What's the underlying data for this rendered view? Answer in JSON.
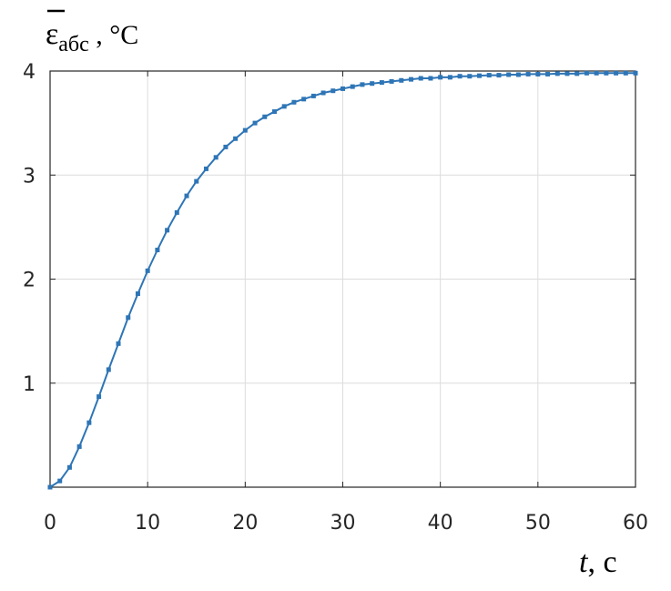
{
  "chart_data": {
    "type": "line",
    "title": "",
    "xlabel": {
      "symbol": "t",
      "unit": ", c"
    },
    "ylabel": {
      "symbol": "ε",
      "subscript": "абс",
      "unit": " , °C",
      "overline": true
    },
    "xlim": [
      0,
      60
    ],
    "ylim": [
      0,
      4
    ],
    "xticks": [
      0,
      10,
      20,
      30,
      40,
      50,
      60
    ],
    "yticks": [
      1,
      2,
      3,
      4
    ],
    "grid": true,
    "legend": "none",
    "series": [
      {
        "color": "#2e75b6",
        "marker": "square",
        "x": [
          0,
          1,
          2,
          3,
          4,
          5,
          6,
          7,
          8,
          9,
          10,
          11,
          12,
          13,
          14,
          15,
          16,
          17,
          18,
          19,
          20,
          21,
          22,
          23,
          24,
          25,
          26,
          27,
          28,
          29,
          30,
          31,
          32,
          33,
          34,
          35,
          36,
          37,
          38,
          39,
          40,
          41,
          42,
          43,
          44,
          45,
          46,
          47,
          48,
          49,
          50,
          51,
          52,
          53,
          54,
          55,
          56,
          57,
          58,
          59,
          60
        ],
        "y": [
          0.0,
          0.06,
          0.19,
          0.39,
          0.62,
          0.87,
          1.13,
          1.38,
          1.63,
          1.86,
          2.08,
          2.28,
          2.47,
          2.64,
          2.8,
          2.94,
          3.06,
          3.17,
          3.27,
          3.35,
          3.43,
          3.5,
          3.56,
          3.61,
          3.66,
          3.7,
          3.73,
          3.76,
          3.79,
          3.81,
          3.83,
          3.85,
          3.87,
          3.88,
          3.89,
          3.9,
          3.91,
          3.92,
          3.93,
          3.93,
          3.94,
          3.94,
          3.95,
          3.95,
          3.955,
          3.96,
          3.96,
          3.965,
          3.965,
          3.97,
          3.97,
          3.97,
          3.975,
          3.975,
          3.975,
          3.98,
          3.98,
          3.98,
          3.98,
          3.98,
          3.98
        ]
      }
    ]
  }
}
